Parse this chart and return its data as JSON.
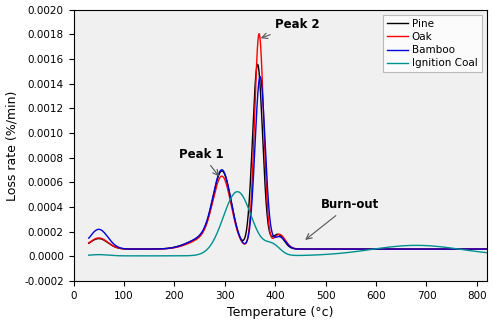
{
  "xlabel": "Temperature (°c)",
  "ylabel": "Loss rate (%/min)",
  "xlim": [
    0,
    820
  ],
  "ylim": [
    -0.0002,
    0.002
  ],
  "yticks": [
    -0.0002,
    0.0,
    0.0002,
    0.0004,
    0.0006,
    0.0008,
    0.001,
    0.0012,
    0.0014,
    0.0016,
    0.0018,
    0.002
  ],
  "xticks": [
    0,
    100,
    200,
    300,
    400,
    500,
    600,
    700,
    800
  ],
  "legend": [
    "Pine",
    "Oak",
    "Bamboo",
    "Ignition Coal"
  ],
  "colors": {
    "Pine": "#000000",
    "Oak": "#ff0000",
    "Bamboo": "#0000dd",
    "Ignition Coal": "#009090"
  },
  "background_color": "#ffffff",
  "figsize": [
    4.93,
    3.25
  ],
  "dpi": 100
}
